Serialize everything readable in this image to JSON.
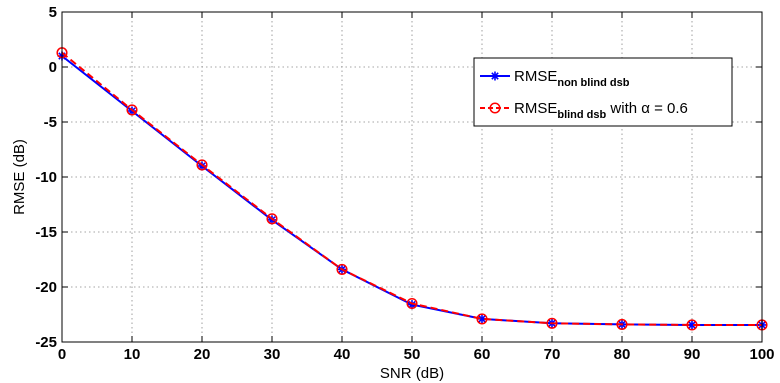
{
  "chart_data": {
    "type": "line",
    "xlabel": "SNR (dB)",
    "ylabel": "RMSE (dB)",
    "xlim": [
      0,
      100
    ],
    "ylim": [
      -25,
      5
    ],
    "xticks": [
      0,
      10,
      20,
      30,
      40,
      50,
      60,
      70,
      80,
      90,
      100
    ],
    "yticks": [
      5,
      0,
      -5,
      -10,
      -15,
      -20,
      -25
    ],
    "grid": true,
    "legend_position": "top-right",
    "x": [
      0,
      10,
      20,
      30,
      40,
      50,
      60,
      70,
      80,
      90,
      100
    ],
    "series": [
      {
        "name": "RMSE",
        "name_subscript": "non blind dsb",
        "name_suffix": "",
        "color": "#0000ff",
        "line_style": "solid",
        "marker": "asterisk",
        "values": [
          1.0,
          -4.0,
          -9.0,
          -13.9,
          -18.4,
          -21.6,
          -22.9,
          -23.3,
          -23.4,
          -23.45,
          -23.45
        ]
      },
      {
        "name": "RMSE",
        "name_subscript": "blind dsb",
        "name_suffix": "with α = 0.6",
        "color": "#ff0000",
        "line_style": "dashed",
        "marker": "circle",
        "values": [
          1.3,
          -3.9,
          -8.9,
          -13.8,
          -18.4,
          -21.5,
          -22.9,
          -23.3,
          -23.4,
          -23.45,
          -23.45
        ]
      }
    ]
  }
}
